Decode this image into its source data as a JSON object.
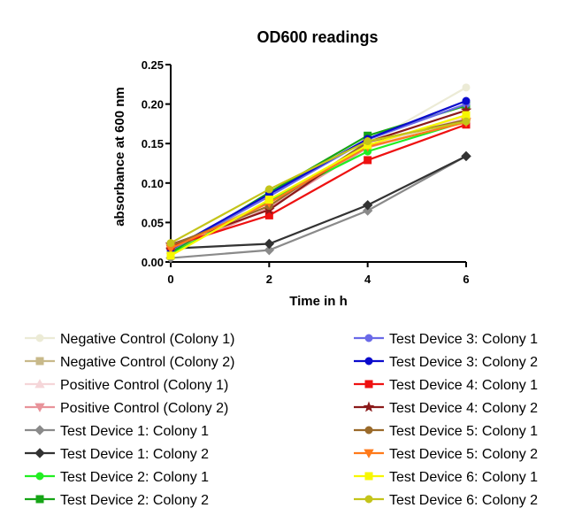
{
  "chart_data": {
    "type": "line",
    "title": "OD600 readings",
    "xlabel": "Time in h",
    "ylabel": "absorbance at 600 nm",
    "x": [
      0,
      2,
      4,
      6
    ],
    "xticks": [
      "0",
      "2",
      "4",
      "6"
    ],
    "yticks": [
      "0.00",
      "0.05",
      "0.10",
      "0.15",
      "0.20",
      "0.25"
    ],
    "xlim": [
      0,
      6
    ],
    "ylim": [
      0,
      0.25
    ],
    "grid": false,
    "legend_position": "bottom",
    "series": [
      {
        "name": "Negative Control (Colony 1)",
        "color": "#ecebd6",
        "marker": "circle",
        "values": [
          0.018,
          0.075,
          0.15,
          0.221
        ]
      },
      {
        "name": "Negative Control (Colony 2)",
        "color": "#c8b98a",
        "marker": "square",
        "values": [
          0.019,
          0.076,
          0.148,
          0.181
        ]
      },
      {
        "name": "Positive Control (Colony 1)",
        "color": "#f5d6d9",
        "marker": "triangle-up",
        "values": [
          0.015,
          0.07,
          0.147,
          0.183
        ]
      },
      {
        "name": "Positive Control (Colony 2)",
        "color": "#e8939a",
        "marker": "triangle-down",
        "values": [
          0.014,
          0.068,
          0.145,
          0.178
        ]
      },
      {
        "name": "Test Device 1: Colony 1",
        "color": "#8a8a8a",
        "marker": "diamond",
        "values": [
          0.005,
          0.015,
          0.065,
          0.134
        ]
      },
      {
        "name": "Test Device 1: Colony 2",
        "color": "#333333",
        "marker": "diamond",
        "values": [
          0.017,
          0.023,
          0.072,
          0.134
        ]
      },
      {
        "name": "Test Device 2: Colony 1",
        "color": "#22ee22",
        "marker": "circle",
        "values": [
          0.01,
          0.078,
          0.14,
          0.178
        ]
      },
      {
        "name": "Test Device 2: Colony 2",
        "color": "#16a516",
        "marker": "square",
        "values": [
          0.012,
          0.088,
          0.16,
          0.198
        ]
      },
      {
        "name": "Test Device 3: Colony 1",
        "color": "#6a6ae8",
        "marker": "circle",
        "values": [
          0.015,
          0.083,
          0.155,
          0.2
        ]
      },
      {
        "name": "Test Device 3: Colony 2",
        "color": "#0a0acc",
        "marker": "circle",
        "values": [
          0.016,
          0.086,
          0.156,
          0.204
        ]
      },
      {
        "name": "Test Device 4: Colony 1",
        "color": "#ee1111",
        "marker": "square",
        "values": [
          0.02,
          0.059,
          0.129,
          0.174
        ]
      },
      {
        "name": "Test Device 4: Colony 2",
        "color": "#8b1a1a",
        "marker": "star",
        "values": [
          0.022,
          0.066,
          0.152,
          0.192
        ]
      },
      {
        "name": "Test Device 5: Colony 1",
        "color": "#9a6a2a",
        "marker": "circle",
        "values": [
          0.021,
          0.071,
          0.152,
          0.18
        ]
      },
      {
        "name": "Test Device 5: Colony 2",
        "color": "#ff7a1a",
        "marker": "triangle-down",
        "values": [
          0.017,
          0.075,
          0.146,
          0.177
        ]
      },
      {
        "name": "Test Device 6: Colony 1",
        "color": "#f7f700",
        "marker": "square",
        "values": [
          0.008,
          0.079,
          0.148,
          0.186
        ]
      },
      {
        "name": "Test Device 6: Colony 2",
        "color": "#c4c41a",
        "marker": "circle",
        "values": [
          0.024,
          0.092,
          0.153,
          0.178
        ]
      }
    ]
  }
}
